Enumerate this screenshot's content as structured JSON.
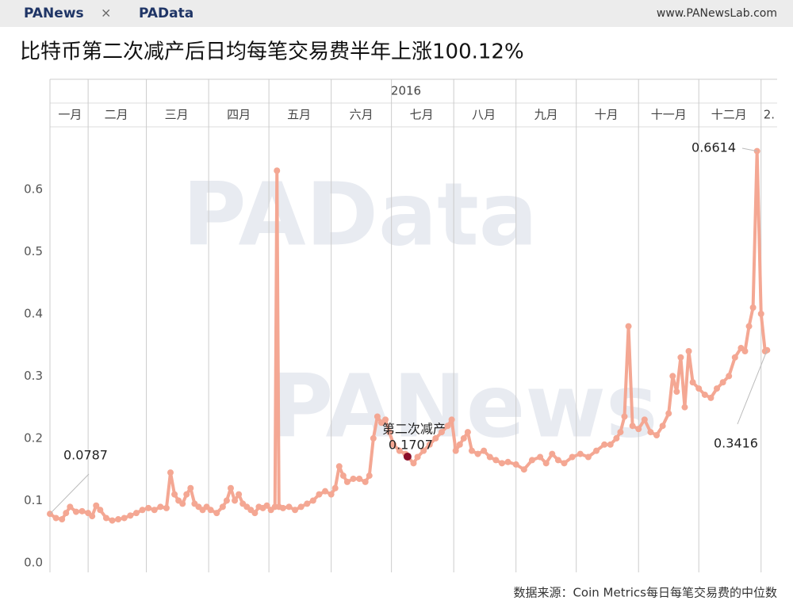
{
  "header": {
    "left_logo_1": "PANews",
    "separator": "×",
    "left_logo_2": "PAData",
    "right": "www.PANewsLab.com"
  },
  "watermarks": [
    "PAData",
    "PANews"
  ],
  "footer": "数据来源：Coin Metrics每日每笔交易费的中位数",
  "chart_data": {
    "type": "line",
    "title": "比特币第二次减产后日均每笔交易费半年上涨100.12%",
    "year_label": "2016",
    "x": [
      12,
      15,
      18,
      20,
      22,
      25,
      28,
      31,
      33,
      35,
      37,
      40,
      43,
      46,
      49,
      52,
      55,
      58,
      61,
      64,
      67,
      70,
      72,
      74,
      76,
      78,
      80,
      82,
      84,
      86,
      88,
      90,
      92,
      95,
      98,
      100,
      102,
      104,
      106,
      108,
      110,
      112,
      114,
      116,
      118,
      120,
      122,
      124,
      125,
      126,
      128,
      131,
      134,
      137,
      140,
      143,
      146,
      149,
      152,
      154,
      156,
      158,
      160,
      163,
      166,
      169,
      171,
      173,
      175,
      177,
      179,
      181,
      183,
      186,
      189,
      190,
      193,
      195,
      198,
      201,
      204,
      207,
      210,
      212,
      214,
      216,
      218,
      220,
      222,
      225,
      228,
      231,
      234,
      237,
      240,
      244,
      248,
      252,
      256,
      259,
      262,
      265,
      268,
      272,
      276,
      280,
      284,
      288,
      291,
      294,
      296,
      298,
      300,
      302,
      305,
      308,
      311,
      314,
      317,
      320,
      322,
      324,
      326,
      328,
      330,
      332,
      335,
      338,
      341,
      344,
      347,
      350,
      353,
      356,
      358,
      360,
      362,
      364,
      366,
      368,
      369
    ],
    "series": [
      {
        "color": "#f4a793",
        "values": [
          0.0787,
          0.072,
          0.07,
          0.08,
          0.09,
          0.082,
          0.083,
          0.08,
          0.075,
          0.092,
          0.085,
          0.072,
          0.068,
          0.07,
          0.072,
          0.076,
          0.08,
          0.085,
          0.088,
          0.085,
          0.09,
          0.088,
          0.145,
          0.11,
          0.1,
          0.095,
          0.11,
          0.12,
          0.095,
          0.09,
          0.085,
          0.09,
          0.085,
          0.08,
          0.09,
          0.1,
          0.12,
          0.1,
          0.11,
          0.095,
          0.09,
          0.085,
          0.08,
          0.09,
          0.088,
          0.092,
          0.085,
          0.09,
          0.63,
          0.09,
          0.088,
          0.09,
          0.085,
          0.09,
          0.095,
          0.1,
          0.11,
          0.115,
          0.11,
          0.12,
          0.155,
          0.14,
          0.13,
          0.135,
          0.135,
          0.13,
          0.14,
          0.2,
          0.235,
          0.225,
          0.23,
          0.21,
          0.19,
          0.18,
          0.175,
          0.1707,
          0.16,
          0.17,
          0.18,
          0.19,
          0.2,
          0.21,
          0.22,
          0.23,
          0.18,
          0.19,
          0.2,
          0.21,
          0.18,
          0.175,
          0.18,
          0.17,
          0.165,
          0.16,
          0.162,
          0.158,
          0.15,
          0.165,
          0.17,
          0.16,
          0.175,
          0.165,
          0.16,
          0.17,
          0.175,
          0.17,
          0.18,
          0.19,
          0.19,
          0.2,
          0.21,
          0.235,
          0.38,
          0.22,
          0.215,
          0.23,
          0.21,
          0.205,
          0.22,
          0.24,
          0.3,
          0.275,
          0.33,
          0.25,
          0.34,
          0.29,
          0.28,
          0.27,
          0.265,
          0.28,
          0.29,
          0.3,
          0.33,
          0.345,
          0.34,
          0.38,
          0.41,
          0.6614,
          0.4,
          0.34,
          0.3416
        ]
      }
    ],
    "highlight": {
      "text": "第二次减产",
      "x": 190,
      "color": "#8b0f2a"
    },
    "xlim": [
      12,
      374
    ],
    "xgrid": [
      31,
      60,
      91,
      121,
      152,
      182,
      213,
      244,
      274,
      305,
      335,
      366
    ],
    "xticks": [
      {
        "value": 22,
        "label": "一月"
      },
      {
        "value": 45,
        "label": "二月"
      },
      {
        "value": 75,
        "label": "三月"
      },
      {
        "value": 106,
        "label": "四月"
      },
      {
        "value": 136,
        "label": "五月"
      },
      {
        "value": 167,
        "label": "六月"
      },
      {
        "value": 197,
        "label": "七月"
      },
      {
        "value": 228,
        "label": "八月"
      },
      {
        "value": 259,
        "label": "九月"
      },
      {
        "value": 289,
        "label": "十月"
      },
      {
        "value": 320,
        "label": "十一月"
      },
      {
        "value": 350,
        "label": "十二月"
      },
      {
        "value": 370,
        "label": "2."
      }
    ],
    "ylim": [
      0,
      0.75
    ],
    "yticks": [
      {
        "value": 0,
        "label": "0.0"
      },
      0.1,
      0.2,
      0.3,
      0.4,
      0.5,
      0.6
    ]
  }
}
